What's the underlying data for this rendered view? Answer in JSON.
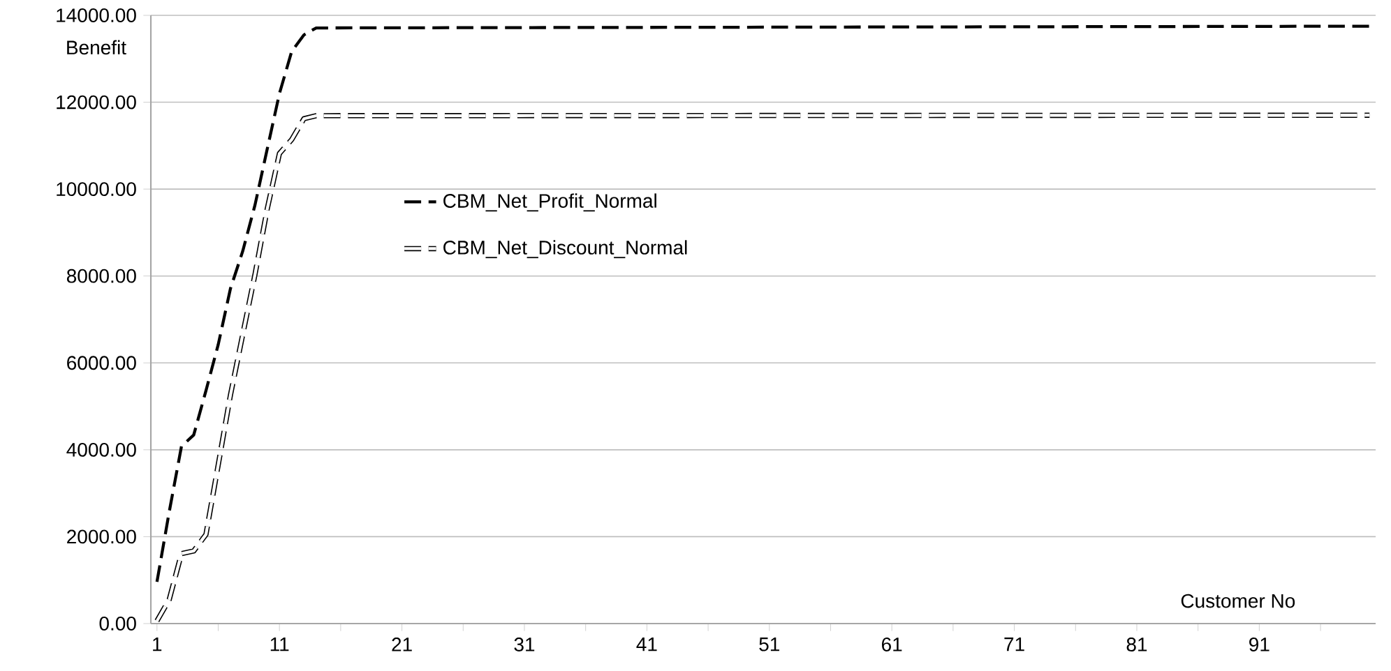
{
  "chart_data": {
    "type": "line",
    "xlabel": "Customer No",
    "ylabel": "Benefit",
    "xlim": [
      0.5,
      100.5
    ],
    "xticks": [
      1,
      {
        "value": 6,
        "label": null
      },
      11,
      {
        "value": 16,
        "label": null
      },
      21,
      {
        "value": 26,
        "label": null
      },
      31,
      {
        "value": 36,
        "label": null
      },
      41,
      {
        "value": 46,
        "label": null
      },
      51,
      {
        "value": 56,
        "label": null
      },
      61,
      {
        "value": 66,
        "label": null
      },
      71,
      {
        "value": 76,
        "label": null
      },
      81,
      {
        "value": 86,
        "label": null
      },
      91,
      {
        "value": 96,
        "label": null
      }
    ],
    "ylim": [
      0,
      14000
    ],
    "yticks": [
      {
        "value": 0,
        "label": "0.00"
      },
      {
        "value": 2000,
        "label": "2000.00"
      },
      {
        "value": 4000,
        "label": "4000.00"
      },
      {
        "value": 6000,
        "label": "6000.00"
      },
      {
        "value": 8000,
        "label": "8000.00"
      },
      {
        "value": 10000,
        "label": "10000.00"
      },
      {
        "value": 12000,
        "label": "12000.00"
      },
      {
        "value": 14000,
        "label": "14000.00"
      }
    ],
    "grid": "y",
    "legend": "left",
    "marker": "none",
    "line_style": "dashed",
    "x": [
      1,
      2,
      3,
      4,
      5,
      6,
      7,
      8,
      9,
      10,
      11,
      12,
      13,
      14,
      100
    ],
    "series": [
      {
        "name": "CBM_Net_Profit_Normal",
        "color": "#000000",
        "values": [
          960,
          2570,
          4080,
          4340,
          5360,
          6420,
          7710,
          8570,
          9630,
          10920,
          12200,
          13170,
          13550,
          13710,
          13750
        ]
      },
      {
        "name": "CBM_Net_Discount_Normal",
        "color": "#000000",
        "values": [
          60,
          550,
          1610,
          1670,
          2050,
          3650,
          5260,
          6650,
          8030,
          9540,
          10820,
          11140,
          11620,
          11690,
          11700
        ]
      }
    ]
  }
}
